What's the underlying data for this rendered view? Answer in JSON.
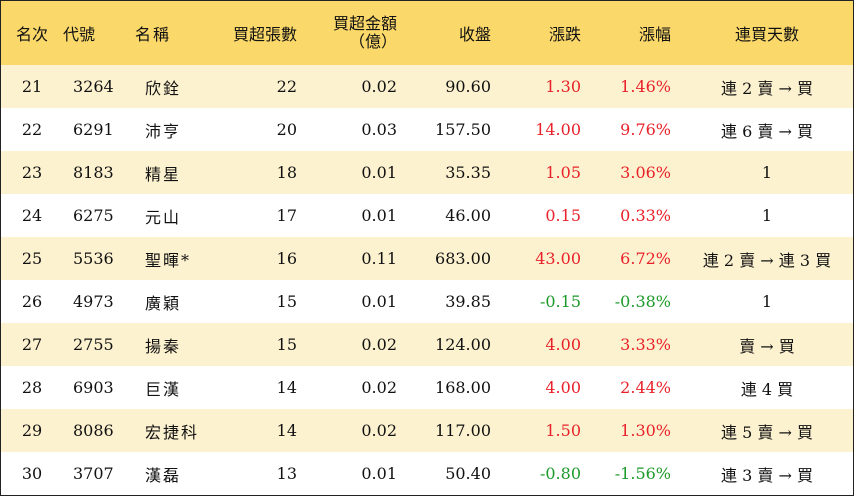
{
  "headers": {
    "rank": "名次",
    "code": "代號",
    "name": "名稱",
    "lots": "買超張數",
    "amount_line1": "買超金額",
    "amount_line2": "（億）",
    "close": "收盤",
    "change": "漲跌",
    "pct": "漲幅",
    "days": "連買天數"
  },
  "colors": {
    "header_bg": "#fbd86a",
    "stripe_bg": "#fdf2d0",
    "up": "#e8212a",
    "down": "#1c9a2a"
  },
  "rows": [
    {
      "rank": "21",
      "code": "3264",
      "name": "欣銓",
      "lots": "22",
      "amount": "0.02",
      "close": "90.60",
      "change": "1.30",
      "pct": "1.46%",
      "dir": "up",
      "days": "連 2 賣 → 買"
    },
    {
      "rank": "22",
      "code": "6291",
      "name": "沛亨",
      "lots": "20",
      "amount": "0.03",
      "close": "157.50",
      "change": "14.00",
      "pct": "9.76%",
      "dir": "up",
      "days": "連 6 賣 → 買"
    },
    {
      "rank": "23",
      "code": "8183",
      "name": "精星",
      "lots": "18",
      "amount": "0.01",
      "close": "35.35",
      "change": "1.05",
      "pct": "3.06%",
      "dir": "up",
      "days": "1"
    },
    {
      "rank": "24",
      "code": "6275",
      "name": "元山",
      "lots": "17",
      "amount": "0.01",
      "close": "46.00",
      "change": "0.15",
      "pct": "0.33%",
      "dir": "up",
      "days": "1"
    },
    {
      "rank": "25",
      "code": "5536",
      "name": "聖暉*",
      "lots": "16",
      "amount": "0.11",
      "close": "683.00",
      "change": "43.00",
      "pct": "6.72%",
      "dir": "up",
      "days": "連 2 賣 → 連 3 買"
    },
    {
      "rank": "26",
      "code": "4973",
      "name": "廣穎",
      "lots": "15",
      "amount": "0.01",
      "close": "39.85",
      "change": "-0.15",
      "pct": "-0.38%",
      "dir": "down",
      "days": "1"
    },
    {
      "rank": "27",
      "code": "2755",
      "name": "揚秦",
      "lots": "15",
      "amount": "0.02",
      "close": "124.00",
      "change": "4.00",
      "pct": "3.33%",
      "dir": "up",
      "days": "賣 → 買"
    },
    {
      "rank": "28",
      "code": "6903",
      "name": "巨漢",
      "lots": "14",
      "amount": "0.02",
      "close": "168.00",
      "change": "4.00",
      "pct": "2.44%",
      "dir": "up",
      "days": "連 4 買"
    },
    {
      "rank": "29",
      "code": "8086",
      "name": "宏捷科",
      "lots": "14",
      "amount": "0.02",
      "close": "117.00",
      "change": "1.50",
      "pct": "1.30%",
      "dir": "up",
      "days": "連 5 賣 → 買"
    },
    {
      "rank": "30",
      "code": "3707",
      "name": "漢磊",
      "lots": "13",
      "amount": "0.01",
      "close": "50.40",
      "change": "-0.80",
      "pct": "-1.56%",
      "dir": "down",
      "days": "連 3 賣 → 買"
    }
  ]
}
